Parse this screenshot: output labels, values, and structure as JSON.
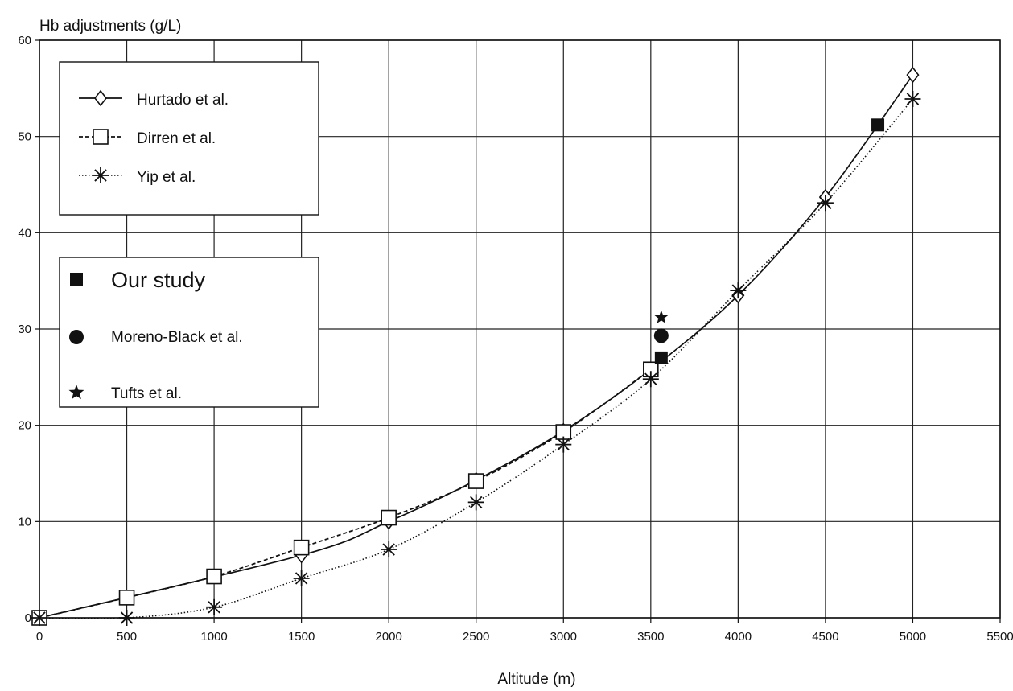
{
  "chart_data": {
    "type": "line",
    "title": "",
    "ylabel": "Hb adjustments (g/L)",
    "xlabel": "Altitude (m)",
    "xlim": [
      0,
      5500
    ],
    "ylim": [
      0,
      60
    ],
    "x_ticks": [
      0,
      500,
      1000,
      1500,
      2000,
      2500,
      3000,
      3500,
      4000,
      4500,
      5000,
      5500
    ],
    "y_ticks": [
      0,
      10,
      20,
      30,
      40,
      50,
      60
    ],
    "grid": true,
    "series": [
      {
        "name": "Hurtado et al.",
        "marker": "diamond",
        "line": "solid",
        "x": [
          0,
          1500,
          2000,
          2500,
          3000,
          3500,
          4000,
          4500,
          5000
        ],
        "y": [
          0,
          6.5,
          10,
          14.3,
          19.4,
          25.8,
          33.5,
          43.7,
          56.4
        ]
      },
      {
        "name": "Dirren et al.",
        "marker": "square",
        "line": "dashed",
        "x": [
          0,
          500,
          1000,
          1500,
          2000,
          2500,
          3000,
          3500
        ],
        "y": [
          0,
          2.1,
          4.3,
          7.3,
          10.4,
          14.2,
          19.3,
          25.8
        ]
      },
      {
        "name": "Yip et al.",
        "marker": "asterisk",
        "line": "dotted",
        "x": [
          0,
          500,
          1000,
          1500,
          2000,
          2500,
          3000,
          3500,
          4000,
          4500,
          5000
        ],
        "y": [
          0,
          0,
          1.1,
          4.1,
          7.1,
          12,
          18,
          24.8,
          34,
          43.1,
          53.9
        ]
      }
    ],
    "points": [
      {
        "name": "Our study",
        "marker": "filled-square",
        "x": [
          3560,
          4800
        ],
        "y": [
          27,
          51.2
        ]
      },
      {
        "name": "Moreno-Black et al.",
        "marker": "filled-circle",
        "x": [
          3560
        ],
        "y": [
          29.3
        ]
      },
      {
        "name": "Tufts et al.",
        "marker": "filled-star",
        "x": [
          3560
        ],
        "y": [
          31.2
        ]
      }
    ],
    "legend_lines": [
      "Hurtado et al.",
      "Dirren et al.",
      "Yip et al."
    ],
    "legend_points": [
      "Our study",
      "Moreno-Black et al.",
      "Tufts et al."
    ],
    "legend_placement": "upper-left"
  }
}
